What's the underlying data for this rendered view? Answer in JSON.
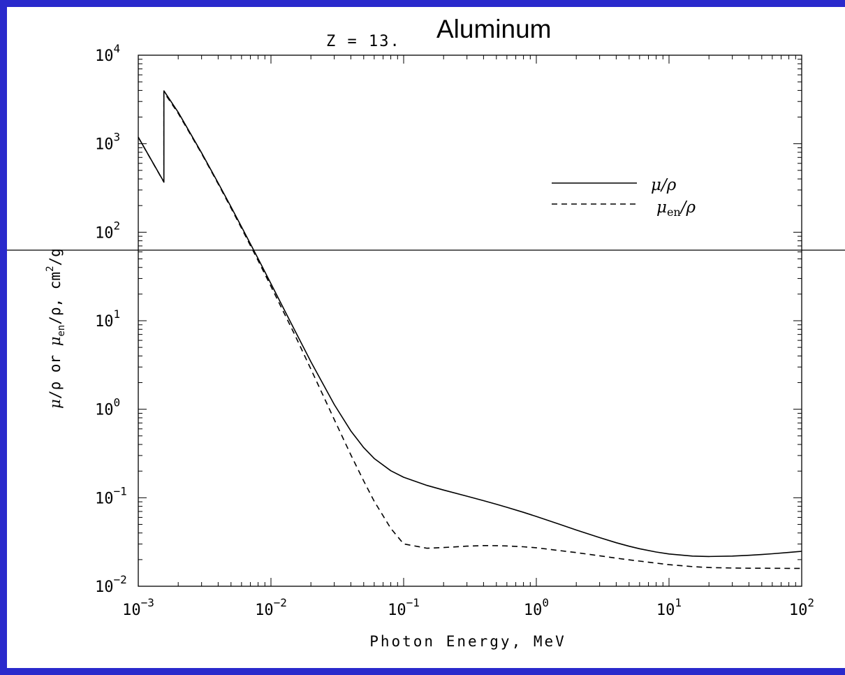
{
  "chart_data": {
    "type": "line",
    "title_z": "Z = 13.",
    "title_name": "Aluminum",
    "xlabel": "Photon Energy, MeV",
    "ylabel": {
      "mu": "μ",
      "rho": "/ρ or ",
      "mu_en_mu": "μ",
      "en": "en",
      "rest": "/ρ,  cm",
      "sq": "2",
      "g": "/g"
    },
    "xscale": "log",
    "yscale": "log",
    "xlim": [
      0.001,
      100
    ],
    "ylim": [
      0.01,
      10000
    ],
    "x_ticks": [
      {
        "base": "10",
        "exp": "−3"
      },
      {
        "base": "10",
        "exp": "−2"
      },
      {
        "base": "10",
        "exp": "−1"
      },
      {
        "base": "10",
        "exp": "0"
      },
      {
        "base": "10",
        "exp": "1"
      },
      {
        "base": "10",
        "exp": "2"
      }
    ],
    "y_ticks": [
      {
        "base": "10",
        "exp": "−2"
      },
      {
        "base": "10",
        "exp": "−1"
      },
      {
        "base": "10",
        "exp": "0"
      },
      {
        "base": "10",
        "exp": "1"
      },
      {
        "base": "10",
        "exp": "2"
      },
      {
        "base": "10",
        "exp": "3"
      },
      {
        "base": "10",
        "exp": "4"
      }
    ],
    "legend_position": "upper-right",
    "legend": [
      {
        "style": "solid",
        "symbol": "μ",
        "sub": "",
        "suffix": "/ρ"
      },
      {
        "style": "dashed",
        "symbol": "μ",
        "sub": "en",
        "suffix": "/ρ"
      }
    ],
    "series": [
      {
        "name": "μ/ρ",
        "style": "solid",
        "x": [
          0.001,
          0.00156,
          0.00156,
          0.002,
          0.003,
          0.004,
          0.005,
          0.006,
          0.008,
          0.01,
          0.015,
          0.02,
          0.03,
          0.04,
          0.05,
          0.06,
          0.08,
          0.1,
          0.15,
          0.2,
          0.3,
          0.4,
          0.5,
          0.6,
          0.8,
          1,
          1.5,
          2,
          3,
          4,
          5,
          6,
          8,
          10,
          15,
          20,
          30,
          40,
          50,
          60,
          80,
          100
        ],
        "y": [
          1185,
          370,
          3957,
          2263,
          788,
          360,
          193.4,
          115.3,
          50.33,
          26.23,
          7.955,
          3.441,
          1.128,
          0.5685,
          0.3681,
          0.2778,
          0.2018,
          0.1704,
          0.1378,
          0.1223,
          0.1042,
          0.09276,
          0.08445,
          0.07802,
          0.06841,
          0.06146,
          0.05006,
          0.04324,
          0.03541,
          0.03106,
          0.02836,
          0.02655,
          0.02437,
          0.02318,
          0.02195,
          0.02168,
          0.02193,
          0.02237,
          0.02284,
          0.0233,
          0.02412,
          0.02482
        ]
      },
      {
        "name": "μen/ρ",
        "style": "dashed",
        "x": [
          0.001,
          0.00156,
          0.00156,
          0.002,
          0.003,
          0.004,
          0.005,
          0.006,
          0.008,
          0.01,
          0.015,
          0.02,
          0.03,
          0.04,
          0.05,
          0.06,
          0.08,
          0.1,
          0.15,
          0.2,
          0.3,
          0.4,
          0.5,
          0.6,
          0.8,
          1,
          1.5,
          2,
          3,
          4,
          5,
          6,
          8,
          10,
          15,
          20,
          30,
          40,
          50,
          60,
          80,
          100
        ],
        "y": [
          1183,
          368,
          3829,
          2204,
          773.3,
          351.9,
          187.7,
          111.1,
          47.83,
          24.44,
          7.099,
          2.839,
          0.7638,
          0.3049,
          0.1549,
          0.09144,
          0.04503,
          0.03007,
          0.02688,
          0.02739,
          0.02839,
          0.02878,
          0.02877,
          0.02857,
          0.02795,
          0.02721,
          0.02529,
          0.024,
          0.02209,
          0.02078,
          0.01989,
          0.01924,
          0.01825,
          0.01753,
          0.01668,
          0.01627,
          0.01606,
          0.01599,
          0.01597,
          0.01596,
          0.01594,
          0.0159
        ]
      }
    ]
  }
}
